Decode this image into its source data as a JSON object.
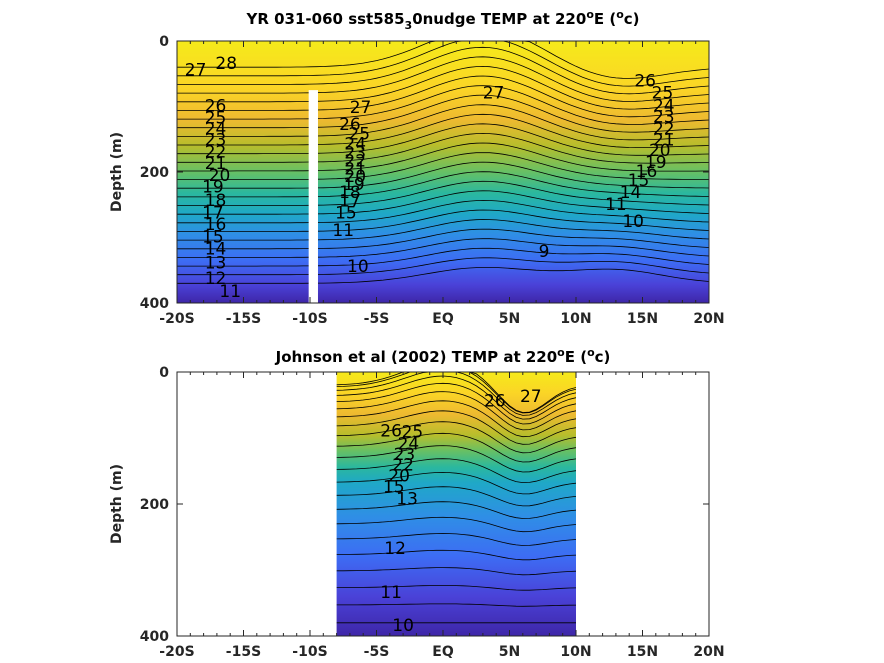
{
  "chart_data": [
    {
      "type": "heatmap",
      "subtype": "filled-contour",
      "title": {
        "prefix": "YR 031-060 sst585",
        "sub": "3",
        "mid": "0nudge TEMP at 220",
        "sup_o": "o",
        "after_o": "E (",
        "sup_c": "o",
        "end": "c)"
      },
      "ylabel": "Depth (m)",
      "xlim": [
        -20,
        20
      ],
      "ylim": [
        0,
        400
      ],
      "xticks": [
        -20,
        -15,
        -10,
        -5,
        0,
        5,
        10,
        15,
        20
      ],
      "xtick_labels": [
        "-20S",
        "-15S",
        "-10S",
        "-5S",
        "EQ",
        "5N",
        "10N",
        "15N",
        "20N"
      ],
      "yticks": [
        0,
        200,
        400
      ],
      "ytick_labels": [
        "0",
        "200",
        "400"
      ],
      "data_extent": [
        -20,
        20
      ],
      "masked_column": {
        "x": [
          -10.1,
          -9.4
        ],
        "depth_from": 75
      },
      "colormap": [
        "#3e26a8",
        "#4a42d8",
        "#3d6cf4",
        "#2f8ee6",
        "#1fa8c7",
        "#2bb89e",
        "#66c065",
        "#b7bd2c",
        "#eeba30",
        "#fbd526",
        "#f5ea1a"
      ],
      "color_range": [
        8,
        29
      ],
      "contour_labels": [
        {
          "text": "28",
          "x": -16.3,
          "y": 35
        },
        {
          "text": "27",
          "x": -18.6,
          "y": 45
        },
        {
          "text": "26",
          "x": -17.1,
          "y": 100
        },
        {
          "text": "25",
          "x": -17.1,
          "y": 118
        },
        {
          "text": "24",
          "x": -17.1,
          "y": 135
        },
        {
          "text": "23",
          "x": -17.1,
          "y": 152
        },
        {
          "text": "22",
          "x": -17.1,
          "y": 170
        },
        {
          "text": "21",
          "x": -17.1,
          "y": 188
        },
        {
          "text": "20",
          "x": -16.8,
          "y": 206
        },
        {
          "text": "19",
          "x": -17.3,
          "y": 224
        },
        {
          "text": "18",
          "x": -17.1,
          "y": 244
        },
        {
          "text": "17",
          "x": -17.3,
          "y": 263
        },
        {
          "text": "16",
          "x": -17.1,
          "y": 281
        },
        {
          "text": "15",
          "x": -17.3,
          "y": 300
        },
        {
          "text": "14",
          "x": -17.1,
          "y": 318
        },
        {
          "text": "13",
          "x": -17.1,
          "y": 340
        },
        {
          "text": "12",
          "x": -17.1,
          "y": 363
        },
        {
          "text": "11",
          "x": -16.0,
          "y": 383
        },
        {
          "text": "27",
          "x": -6.2,
          "y": 102
        },
        {
          "text": "26",
          "x": -7.0,
          "y": 128
        },
        {
          "text": "25",
          "x": -6.3,
          "y": 143
        },
        {
          "text": "24",
          "x": -6.6,
          "y": 158
        },
        {
          "text": "23",
          "x": -6.6,
          "y": 172
        },
        {
          "text": "22",
          "x": -6.6,
          "y": 184
        },
        {
          "text": "21",
          "x": -6.6,
          "y": 196
        },
        {
          "text": "20",
          "x": -6.6,
          "y": 208
        },
        {
          "text": "19",
          "x": -6.7,
          "y": 220
        },
        {
          "text": "18",
          "x": -7.0,
          "y": 232
        },
        {
          "text": "17",
          "x": -7.0,
          "y": 245
        },
        {
          "text": "15",
          "x": -7.3,
          "y": 263
        },
        {
          "text": "11",
          "x": -7.5,
          "y": 290
        },
        {
          "text": "27",
          "x": 3.8,
          "y": 80
        },
        {
          "text": "10",
          "x": -6.4,
          "y": 345
        },
        {
          "text": "9",
          "x": 7.6,
          "y": 322
        },
        {
          "text": "26",
          "x": 15.2,
          "y": 62
        },
        {
          "text": "25",
          "x": 16.5,
          "y": 80
        },
        {
          "text": "24",
          "x": 16.6,
          "y": 100
        },
        {
          "text": "23",
          "x": 16.6,
          "y": 117
        },
        {
          "text": "22",
          "x": 16.6,
          "y": 135
        },
        {
          "text": "21",
          "x": 16.6,
          "y": 152
        },
        {
          "text": "20",
          "x": 16.3,
          "y": 168
        },
        {
          "text": "19",
          "x": 16.0,
          "y": 186
        },
        {
          "text": "16",
          "x": 15.3,
          "y": 200
        },
        {
          "text": "15",
          "x": 14.7,
          "y": 214
        },
        {
          "text": "14",
          "x": 14.1,
          "y": 232
        },
        {
          "text": "11",
          "x": 13.0,
          "y": 250
        },
        {
          "text": "10",
          "x": 14.3,
          "y": 276
        }
      ]
    },
    {
      "type": "heatmap",
      "subtype": "filled-contour",
      "title": {
        "prefix": "Johnson et al (2002) TEMP at 220",
        "sub": "",
        "mid": "",
        "sup_o": "o",
        "after_o": "E (",
        "sup_c": "o",
        "end": "c)"
      },
      "ylabel": "Depth (m)",
      "xlim": [
        -20,
        20
      ],
      "ylim": [
        0,
        400
      ],
      "xticks": [
        -20,
        -15,
        -10,
        -5,
        0,
        5,
        10,
        15,
        20
      ],
      "xtick_labels": [
        "-20S",
        "-15S",
        "-10S",
        "-5S",
        "EQ",
        "5N",
        "10N",
        "15N",
        "20N"
      ],
      "yticks": [
        0,
        200,
        400
      ],
      "ytick_labels": [
        "0",
        "200",
        "400"
      ],
      "data_extent": [
        -8,
        10
      ],
      "masked_column": null,
      "colormap": [
        "#3e26a8",
        "#4a42d8",
        "#3d6cf4",
        "#2f8ee6",
        "#1fa8c7",
        "#2bb89e",
        "#66c065",
        "#b7bd2c",
        "#eeba30",
        "#fbd526",
        "#f5ea1a"
      ],
      "color_range": [
        8,
        29
      ],
      "contour_labels": [
        {
          "text": "26",
          "x": 3.9,
          "y": 45
        },
        {
          "text": "27",
          "x": 6.6,
          "y": 38
        },
        {
          "text": "26",
          "x": -3.9,
          "y": 90
        },
        {
          "text": "25",
          "x": -2.3,
          "y": 92
        },
        {
          "text": "24",
          "x": -2.6,
          "y": 110
        },
        {
          "text": "23",
          "x": -2.9,
          "y": 126
        },
        {
          "text": "22",
          "x": -3.0,
          "y": 142
        },
        {
          "text": "20",
          "x": -3.3,
          "y": 158
        },
        {
          "text": "15",
          "x": -3.7,
          "y": 175
        },
        {
          "text": "13",
          "x": -2.7,
          "y": 193
        },
        {
          "text": "12",
          "x": -3.6,
          "y": 268
        },
        {
          "text": "11",
          "x": -3.9,
          "y": 335
        },
        {
          "text": "10",
          "x": -3.0,
          "y": 385
        }
      ]
    }
  ]
}
